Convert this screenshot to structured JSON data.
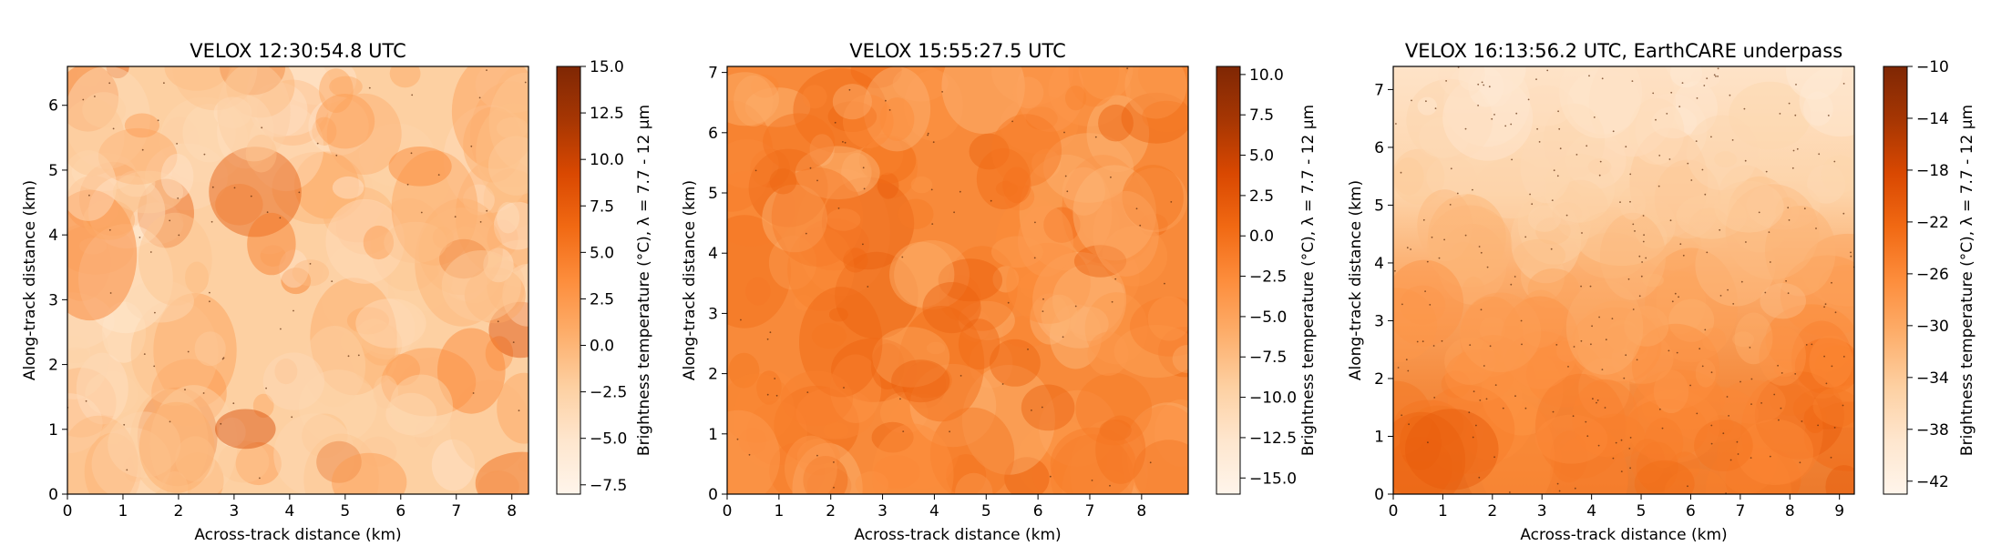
{
  "figure": {
    "colors": {
      "cmap": [
        "#fff5eb",
        "#fee6ce",
        "#fdd0a2",
        "#fdae6b",
        "#fd8d3c",
        "#f16913",
        "#d94801",
        "#a63603",
        "#7f2704"
      ],
      "axis": "#000000",
      "background": "#ffffff"
    }
  },
  "chart_data": [
    {
      "type": "heatmap",
      "title": "VELOX 12:30:54.8 UTC",
      "xlabel": "Across-track distance (km)",
      "ylabel": "Along-track distance (km)",
      "xlim": [
        0,
        8.3
      ],
      "ylim": [
        0,
        6.6
      ],
      "xticks": [
        0,
        1,
        2,
        3,
        4,
        5,
        6,
        7,
        8
      ],
      "yticks": [
        0,
        1,
        2,
        3,
        4,
        5,
        6
      ],
      "colorbar": {
        "label": "Brightness temperature (°C), λ = 7.7 - 12 μm",
        "range": [
          -8.0,
          15.0
        ],
        "ticks": [
          "15.0",
          "12.5",
          "10.0",
          "7.5",
          "5.0",
          "2.5",
          "0.0",
          "−2.5",
          "−5.0",
          "−7.5"
        ]
      },
      "field_mean_level": 0.28
    },
    {
      "type": "heatmap",
      "title": "VELOX 15:55:27.5 UTC",
      "xlabel": "Across-track distance (km)",
      "ylabel": "Along-track distance (km)",
      "xlim": [
        0,
        8.9
      ],
      "ylim": [
        0,
        7.1
      ],
      "xticks": [
        0,
        1,
        2,
        3,
        4,
        5,
        6,
        7,
        8
      ],
      "yticks": [
        0,
        1,
        2,
        3,
        4,
        5,
        6,
        7
      ],
      "colorbar": {
        "label": "Brightness temperature (°C), λ = 7.7 - 12 μm",
        "range": [
          -16.0,
          10.5
        ],
        "ticks": [
          "10.0",
          "7.5",
          "5.0",
          "2.5",
          "0.0",
          "−2.5",
          "−5.0",
          "−7.5",
          "−10.0",
          "−12.5",
          "−15.0"
        ]
      },
      "field_mean_level": 0.5
    },
    {
      "type": "heatmap",
      "title": "VELOX 16:13:56.2 UTC, EarthCARE underpass",
      "xlabel": "Across-track distance (km)",
      "ylabel": "Along-track distance (km)",
      "xlim": [
        0,
        9.3
      ],
      "ylim": [
        0,
        7.4
      ],
      "xticks": [
        0,
        1,
        2,
        3,
        4,
        5,
        6,
        7,
        8,
        9
      ],
      "yticks": [
        0,
        1,
        2,
        3,
        4,
        5,
        6,
        7
      ],
      "colorbar": {
        "label": "Brightness temperature (°C), λ = 7.7 - 12 μm",
        "range": [
          -43.0,
          -10.0
        ],
        "ticks": [
          "−10",
          "−14",
          "−18",
          "−22",
          "−26",
          "−30",
          "−34",
          "−38",
          "−42"
        ]
      },
      "field_mean_level": 0.45
    }
  ]
}
